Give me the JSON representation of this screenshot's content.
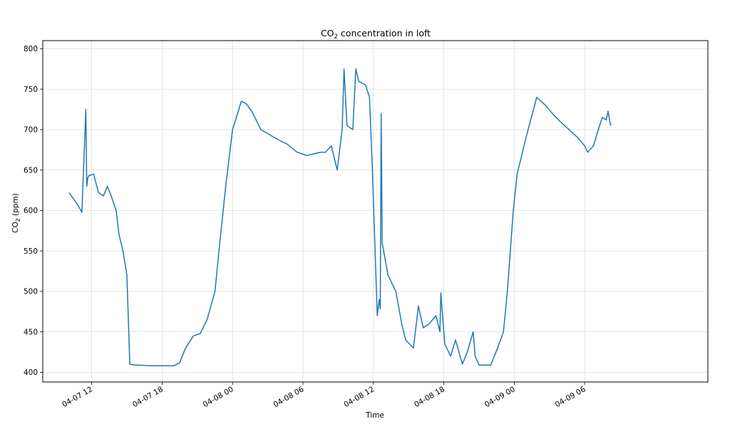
{
  "chart_data": {
    "type": "line",
    "title": {
      "main": "CO",
      "sub": "2",
      "rest": " concentration in loft"
    },
    "xlabel": "Time",
    "ylabel": {
      "main": "CO",
      "sub": "2",
      "rest": " (ppm)"
    },
    "ylim": [
      388,
      810
    ],
    "yticks": [
      400,
      450,
      500,
      550,
      600,
      650,
      700,
      750,
      800
    ],
    "xlim": [
      "2020-04-07 07:50",
      "2020-04-09 16:30"
    ],
    "xticks": [
      {
        "t": "2020-04-07 12:00",
        "label": "04-07 12"
      },
      {
        "t": "2020-04-07 18:00",
        "label": "04-07 18"
      },
      {
        "t": "2020-04-08 00:00",
        "label": "04-08 00"
      },
      {
        "t": "2020-04-08 06:00",
        "label": "04-08 06"
      },
      {
        "t": "2020-04-08 12:00",
        "label": "04-08 12"
      },
      {
        "t": "2020-04-08 18:00",
        "label": "04-08 18"
      },
      {
        "t": "2020-04-09 00:00",
        "label": "04-09 00"
      },
      {
        "t": "2020-04-09 06:00",
        "label": "04-09 06"
      }
    ],
    "grid": true,
    "color": "#1f77b4",
    "series": [
      {
        "name": "",
        "x": [
          "2020-04-07 10:05",
          "2020-04-07 10:40",
          "2020-04-07 11:10",
          "2020-04-07 11:30",
          "2020-04-07 11:35",
          "2020-04-07 11:40",
          "2020-04-07 11:45",
          "2020-04-07 12:10",
          "2020-04-07 12:35",
          "2020-04-07 13:00",
          "2020-04-07 13:20",
          "2020-04-07 13:40",
          "2020-04-07 14:05",
          "2020-04-07 14:20",
          "2020-04-07 14:40",
          "2020-04-07 15:00",
          "2020-04-07 15:15",
          "2020-04-07 15:40",
          "2020-04-07 16:00",
          "2020-04-07 17:00",
          "2020-04-07 18:00",
          "2020-04-07 19:00",
          "2020-04-07 19:30",
          "2020-04-07 20:00",
          "2020-04-07 20:40",
          "2020-04-07 21:15",
          "2020-04-07 21:50",
          "2020-04-07 22:30",
          "2020-04-07 22:55",
          "2020-04-07 23:25",
          "2020-04-08 00:00",
          "2020-04-08 00:45",
          "2020-04-08 01:10",
          "2020-04-08 01:40",
          "2020-04-08 02:25",
          "2020-04-08 03:00",
          "2020-04-08 03:50",
          "2020-04-08 04:40",
          "2020-04-08 05:30",
          "2020-04-08 06:20",
          "2020-04-08 06:55",
          "2020-04-08 07:30",
          "2020-04-08 07:55",
          "2020-04-08 08:25",
          "2020-04-08 08:55",
          "2020-04-08 09:20",
          "2020-04-08 09:30",
          "2020-04-08 09:45",
          "2020-04-08 10:15",
          "2020-04-08 10:30",
          "2020-04-08 10:45",
          "2020-04-08 11:20",
          "2020-04-08 11:40",
          "2020-04-08 11:55",
          "2020-04-08 12:20",
          "2020-04-08 12:30",
          "2020-04-08 12:35",
          "2020-04-08 12:40",
          "2020-04-08 12:45",
          "2020-04-08 13:00",
          "2020-04-08 13:15",
          "2020-04-08 13:55",
          "2020-04-08 14:25",
          "2020-04-08 14:45",
          "2020-04-08 15:25",
          "2020-04-08 15:50",
          "2020-04-08 16:15",
          "2020-04-08 16:45",
          "2020-04-08 17:20",
          "2020-04-08 17:40",
          "2020-04-08 17:45",
          "2020-04-08 18:05",
          "2020-04-08 18:35",
          "2020-04-08 19:00",
          "2020-04-08 19:35",
          "2020-04-08 20:00",
          "2020-04-08 20:30",
          "2020-04-08 20:40",
          "2020-04-08 21:00",
          "2020-04-08 22:00",
          "2020-04-08 22:35",
          "2020-04-08 23:05",
          "2020-04-08 23:25",
          "2020-04-08 23:55",
          "2020-04-09 00:15",
          "2020-04-09 00:30",
          "2020-04-09 01:00",
          "2020-04-09 01:55",
          "2020-04-09 02:40",
          "2020-04-09 03:15",
          "2020-04-09 03:55",
          "2020-04-09 04:40",
          "2020-04-09 05:25",
          "2020-04-09 06:00",
          "2020-04-09 06:15",
          "2020-04-09 06:45",
          "2020-04-09 07:10",
          "2020-04-09 07:30",
          "2020-04-09 07:50",
          "2020-04-09 08:00",
          "2020-04-09 08:10",
          "2020-04-09 08:15"
        ],
        "values": [
          622,
          610,
          598,
          725,
          630,
          640,
          643,
          645,
          622,
          618,
          630,
          618,
          600,
          570,
          550,
          520,
          410,
          409,
          409,
          408,
          408,
          408,
          412,
          430,
          445,
          448,
          465,
          500,
          560,
          630,
          700,
          735,
          732,
          722,
          700,
          695,
          688,
          682,
          672,
          668,
          670,
          672,
          672,
          680,
          650,
          700,
          775,
          705,
          700,
          775,
          760,
          755,
          740,
          650,
          470,
          490,
          478,
          720,
          560,
          540,
          520,
          500,
          460,
          440,
          430,
          482,
          455,
          460,
          470,
          450,
          498,
          435,
          420,
          440,
          410,
          425,
          450,
          420,
          409,
          409,
          430,
          450,
          500,
          600,
          645,
          660,
          690,
          740,
          730,
          720,
          710,
          700,
          690,
          680,
          672,
          680,
          700,
          715,
          712,
          723,
          708,
          705
        ]
      }
    ]
  }
}
